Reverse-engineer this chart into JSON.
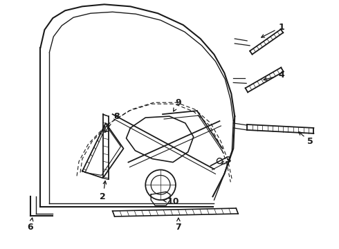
{
  "bg_color": "#ffffff",
  "line_color": "#1a1a1a",
  "fig_width": 4.9,
  "fig_height": 3.6,
  "dpi": 100,
  "label_fontsize": 9
}
